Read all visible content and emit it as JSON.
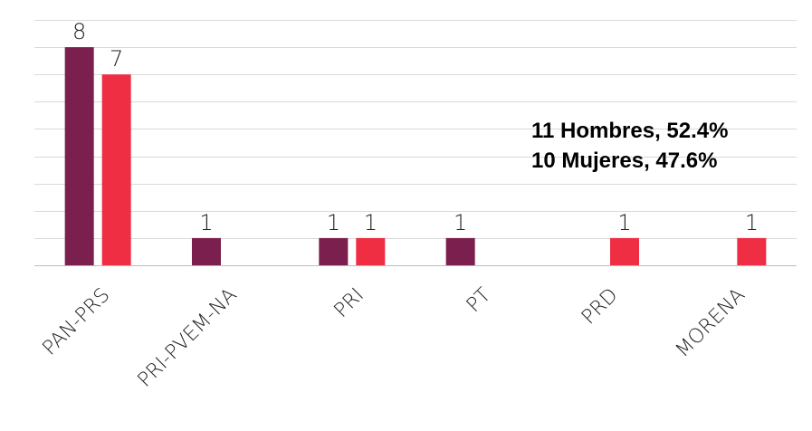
{
  "chart_data": {
    "type": "bar",
    "categories": [
      "PAN-PRS",
      "PRI-PVEM-NA",
      "PRI",
      "PT",
      "PRD",
      "MORENA"
    ],
    "series": [
      {
        "values": [
          8,
          1,
          1,
          1,
          0,
          0
        ],
        "color": "#7a1f4e"
      },
      {
        "values": [
          7,
          0,
          1,
          0,
          1,
          1
        ],
        "color": "#ef2d43"
      }
    ],
    "ylim": [
      0,
      9
    ],
    "grid": true,
    "annotations": [
      "11 Hombres, 52.4%",
      "10 Mujeres, 47.6%"
    ]
  }
}
